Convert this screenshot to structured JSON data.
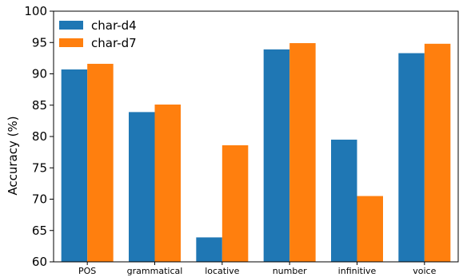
{
  "chart_data": {
    "type": "bar",
    "categories": [
      "POS",
      "grammatical",
      "locative",
      "number",
      "infinitive",
      "voice"
    ],
    "series": [
      {
        "name": "char-d4",
        "color": "#1f77b4",
        "values": [
          90.7,
          83.9,
          63.9,
          93.9,
          79.5,
          93.3
        ]
      },
      {
        "name": "char-d7",
        "color": "#ff7f0e",
        "values": [
          91.6,
          85.1,
          78.6,
          94.9,
          70.5,
          94.8
        ]
      }
    ],
    "xlabel": "",
    "ylabel": "Accuracy (%)",
    "ylim": [
      60,
      100
    ],
    "yticks": [
      60,
      65,
      70,
      75,
      80,
      85,
      90,
      95,
      100
    ],
    "grid": false,
    "legend_position": "top-left"
  }
}
